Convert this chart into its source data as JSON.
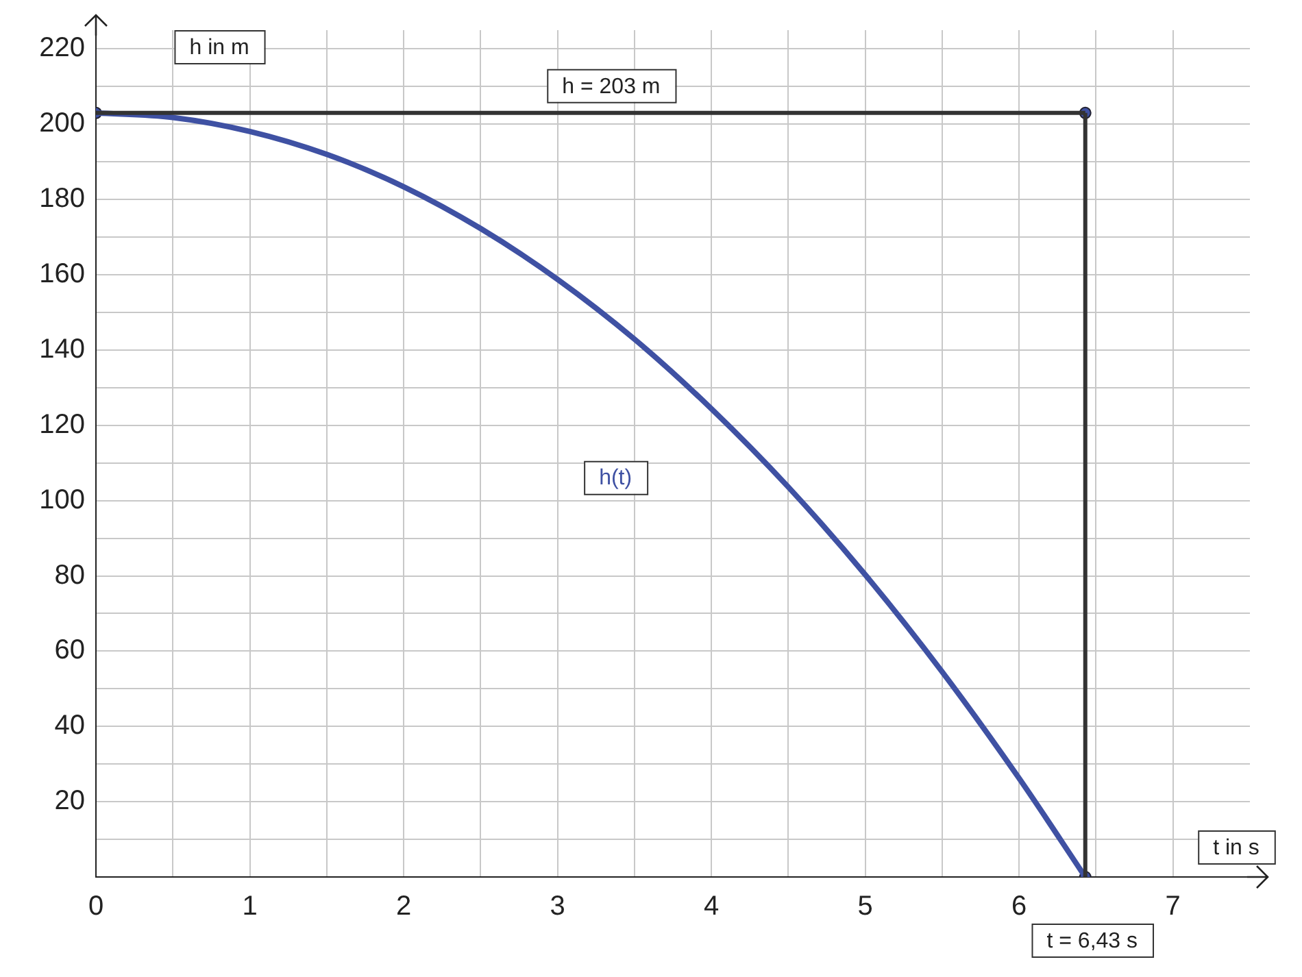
{
  "chart_data": {
    "type": "line",
    "xlabel": "t in s",
    "ylabel": "h in m",
    "xlim": [
      0,
      7.5
    ],
    "ylim": [
      0,
      225
    ],
    "xticks": [
      0,
      {
        "value": 0.5,
        "label": null
      },
      1,
      {
        "value": 1.5,
        "label": null
      },
      2,
      {
        "value": 2.5,
        "label": null
      },
      3,
      {
        "value": 3.5,
        "label": null
      },
      4,
      {
        "value": 4.5,
        "label": null
      },
      5,
      {
        "value": 5.5,
        "label": null
      },
      6,
      {
        "value": 6.5,
        "label": null
      },
      7
    ],
    "yticks": [
      {
        "value": 10,
        "label": null
      },
      20,
      {
        "value": 30,
        "label": null
      },
      40,
      {
        "value": 50,
        "label": null
      },
      60,
      {
        "value": 70,
        "label": null
      },
      80,
      {
        "value": 90,
        "label": null
      },
      100,
      {
        "value": 110,
        "label": null
      },
      120,
      {
        "value": 130,
        "label": null
      },
      140,
      {
        "value": 150,
        "label": null
      },
      160,
      {
        "value": 170,
        "label": null
      },
      180,
      {
        "value": 190,
        "label": null
      },
      200,
      {
        "value": 210,
        "label": null
      },
      220
    ],
    "grid": true,
    "legend": false,
    "series": [
      {
        "name": "h(t)",
        "color": "#3f51a3",
        "marker": "none",
        "x": [
          0,
          0.5,
          1,
          1.5,
          2,
          2.5,
          3,
          3.5,
          4,
          4.5,
          5,
          5.5,
          6,
          6.43
        ],
        "values": [
          203,
          201.8,
          198.1,
          192,
          183.4,
          172.3,
          158.8,
          142.9,
          124.4,
          103.6,
          80.3,
          54.5,
          26.2,
          0
        ]
      },
      {
        "type": "scatter",
        "color": "#3f51a3",
        "marker": "circle",
        "x": [
          0,
          6.43,
          6.43
        ],
        "values": [
          203,
          203,
          0
        ]
      }
    ],
    "ref_lines": [
      {
        "axis": "y",
        "value": 203,
        "label": "h = 203 m",
        "color": "#333333"
      },
      {
        "axis": "x",
        "value": 6.43,
        "label": "t = 6,43 s",
        "color": "#333333"
      }
    ]
  }
}
